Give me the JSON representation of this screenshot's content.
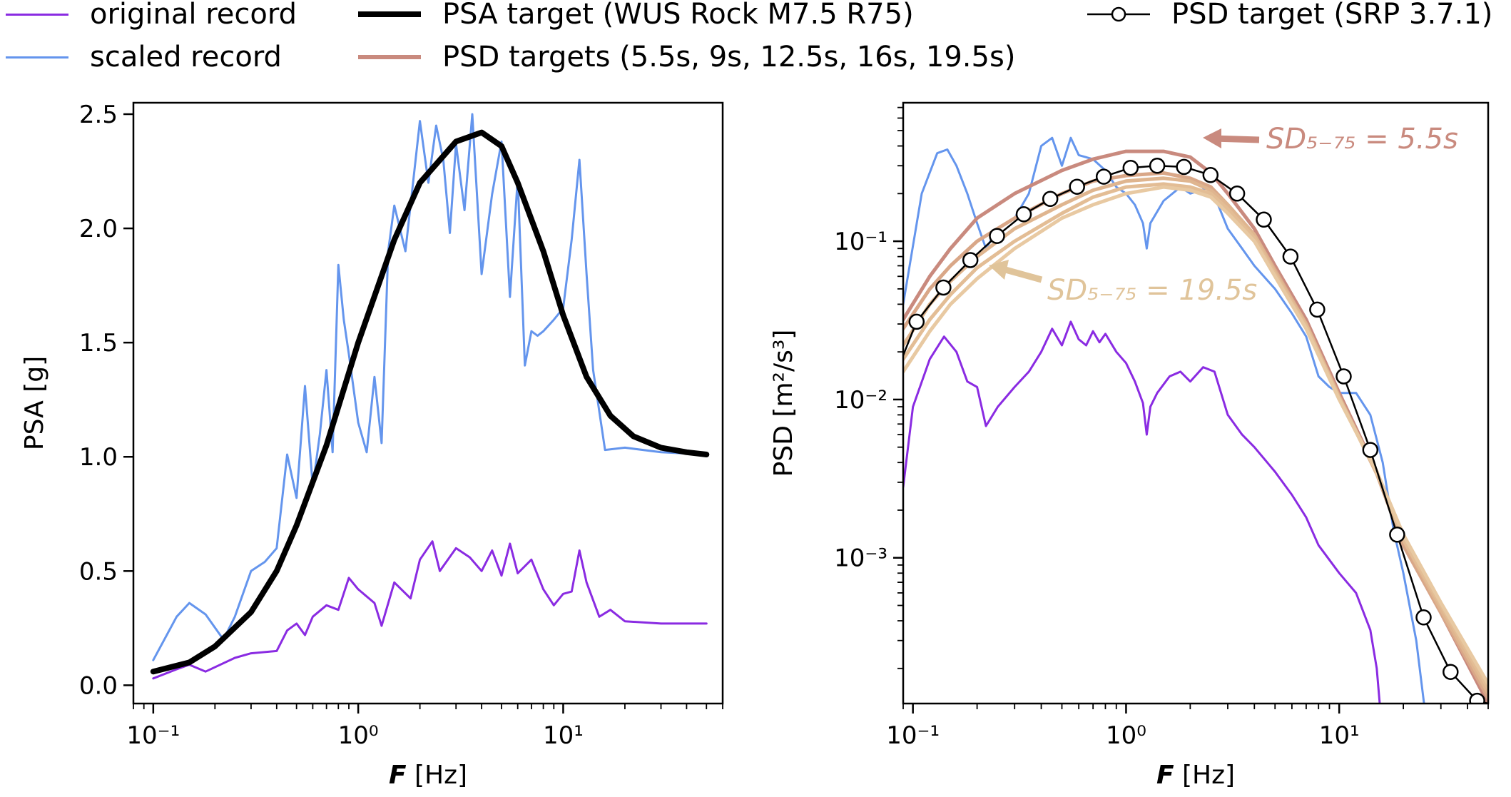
{
  "legend": [
    {
      "label": "original record",
      "color": "#8a2be2",
      "style": "thin"
    },
    {
      "label": "scaled record",
      "color": "#6495ed",
      "style": "thin"
    },
    {
      "label": "PSA target (WUS Rock M7.5 R75)",
      "color": "#000000",
      "style": "thick"
    },
    {
      "label": "PSD targets (5.5s, 9s, 12.5s, 16s, 19.5s)",
      "color": "#c98a7e",
      "style": "medium"
    },
    {
      "label": "PSD target (SRP 3.7.1)",
      "color": "#000000",
      "style": "marker"
    }
  ],
  "chart_data": [
    {
      "type": "line",
      "xscale": "log",
      "xlim": [
        0.08,
        60
      ],
      "ylim": [
        -0.08,
        2.55
      ],
      "xlabel": "F [Hz]",
      "ylabel": "PSA [g]",
      "yticks": [
        0.0,
        0.5,
        1.0,
        1.5,
        2.0,
        2.5
      ],
      "ytick_labels": [
        "0.0",
        "0.5",
        "1.0",
        "1.5",
        "2.0",
        "2.5"
      ],
      "xticks": [
        0.1,
        1,
        10
      ],
      "xtick_labels": [
        "10⁻¹",
        "10⁰",
        "10¹"
      ],
      "series": [
        {
          "name": "original record",
          "color": "#8a2be2",
          "x": [
            0.1,
            0.13,
            0.15,
            0.18,
            0.25,
            0.3,
            0.4,
            0.45,
            0.5,
            0.55,
            0.6,
            0.7,
            0.8,
            0.9,
            1.0,
            1.2,
            1.3,
            1.5,
            1.8,
            2.0,
            2.3,
            2.5,
            3.0,
            3.5,
            4.0,
            4.5,
            5.0,
            5.5,
            6.0,
            7.0,
            8.0,
            9.0,
            10.0,
            11.0,
            12.0,
            13.0,
            15.0,
            17.0,
            20.0,
            30.0,
            50.0
          ],
          "y": [
            0.03,
            0.07,
            0.09,
            0.06,
            0.12,
            0.14,
            0.15,
            0.24,
            0.27,
            0.22,
            0.3,
            0.35,
            0.33,
            0.47,
            0.42,
            0.36,
            0.26,
            0.45,
            0.38,
            0.55,
            0.63,
            0.5,
            0.6,
            0.56,
            0.5,
            0.59,
            0.48,
            0.62,
            0.49,
            0.55,
            0.42,
            0.35,
            0.4,
            0.41,
            0.59,
            0.45,
            0.3,
            0.33,
            0.28,
            0.27,
            0.27
          ]
        },
        {
          "name": "scaled record",
          "color": "#6495ed",
          "x": [
            0.1,
            0.13,
            0.15,
            0.18,
            0.22,
            0.25,
            0.3,
            0.35,
            0.4,
            0.45,
            0.5,
            0.55,
            0.6,
            0.65,
            0.7,
            0.75,
            0.8,
            0.85,
            0.9,
            1.0,
            1.1,
            1.2,
            1.3,
            1.4,
            1.5,
            1.7,
            2.0,
            2.2,
            2.4,
            2.6,
            2.8,
            3.0,
            3.3,
            3.6,
            4.0,
            4.5,
            5.0,
            5.5,
            6.0,
            6.5,
            7.0,
            7.5,
            8.0,
            9.0,
            10.0,
            11.0,
            12.0,
            13.0,
            14.0,
            16.0,
            20.0,
            30.0,
            50.0
          ],
          "y": [
            0.11,
            0.3,
            0.36,
            0.31,
            0.2,
            0.3,
            0.5,
            0.54,
            0.6,
            1.01,
            0.82,
            1.31,
            0.87,
            1.1,
            1.38,
            1.02,
            1.84,
            1.6,
            1.45,
            1.15,
            1.02,
            1.35,
            1.06,
            1.9,
            2.1,
            1.9,
            2.47,
            2.2,
            2.45,
            2.3,
            1.98,
            2.37,
            2.08,
            2.5,
            1.8,
            2.15,
            2.38,
            1.7,
            2.22,
            1.4,
            1.55,
            1.53,
            1.55,
            1.6,
            1.65,
            1.95,
            2.3,
            1.8,
            1.38,
            1.03,
            1.04,
            1.02,
            1.01
          ]
        },
        {
          "name": "PSA target (WUS Rock M7.5 R75)",
          "color": "#000000",
          "x": [
            0.1,
            0.15,
            0.2,
            0.3,
            0.4,
            0.5,
            0.7,
            1.0,
            1.5,
            2.0,
            3.0,
            4.0,
            5.0,
            6.0,
            8.0,
            10.0,
            13.0,
            17.0,
            22.0,
            30.0,
            40.0,
            50.0
          ],
          "y": [
            0.06,
            0.1,
            0.17,
            0.32,
            0.5,
            0.7,
            1.05,
            1.5,
            1.95,
            2.2,
            2.38,
            2.42,
            2.36,
            2.2,
            1.9,
            1.62,
            1.35,
            1.18,
            1.09,
            1.04,
            1.02,
            1.01
          ]
        }
      ]
    },
    {
      "type": "line",
      "xscale": "log",
      "yscale": "log",
      "xlim": [
        0.09,
        50
      ],
      "ylim": [
        0.00012,
        0.75
      ],
      "xlabel": "F [Hz]",
      "ylabel": "PSD [m²/s³]",
      "yticks": [
        0.001,
        0.01,
        0.1
      ],
      "ytick_labels": [
        "10⁻³",
        "10⁻²",
        "10⁻¹"
      ],
      "xticks": [
        0.1,
        1,
        10
      ],
      "xtick_labels": [
        "10⁻¹",
        "10⁰",
        "10¹"
      ],
      "annotations": [
        {
          "text": "SD₅₋₇₅ = 5.5s",
          "color": "#c98a7e"
        },
        {
          "text": "SD₅₋₇₅ = 19.5s",
          "color": "#e0c49a"
        }
      ],
      "series": [
        {
          "name": "original record",
          "color": "#8a2be2",
          "x": [
            0.09,
            0.1,
            0.12,
            0.14,
            0.16,
            0.18,
            0.2,
            0.22,
            0.25,
            0.3,
            0.35,
            0.4,
            0.45,
            0.5,
            0.55,
            0.6,
            0.65,
            0.7,
            0.75,
            0.8,
            0.9,
            1.0,
            1.1,
            1.2,
            1.25,
            1.3,
            1.4,
            1.6,
            1.8,
            2.0,
            2.3,
            2.6,
            3.0,
            3.5,
            4.0,
            5.0,
            6.0,
            7.0,
            8.0,
            10.0,
            12.0,
            14.0,
            15.0,
            15.5
          ],
          "y": [
            0.0028,
            0.009,
            0.018,
            0.025,
            0.02,
            0.013,
            0.012,
            0.0068,
            0.009,
            0.012,
            0.015,
            0.02,
            0.028,
            0.022,
            0.031,
            0.024,
            0.022,
            0.027,
            0.023,
            0.026,
            0.02,
            0.017,
            0.013,
            0.0095,
            0.006,
            0.009,
            0.011,
            0.014,
            0.015,
            0.013,
            0.016,
            0.015,
            0.008,
            0.006,
            0.005,
            0.0035,
            0.0025,
            0.0018,
            0.0012,
            0.0008,
            0.0006,
            0.00035,
            0.0002,
            0.00012
          ]
        },
        {
          "name": "scaled record",
          "color": "#6495ed",
          "x": [
            0.09,
            0.11,
            0.13,
            0.145,
            0.16,
            0.18,
            0.2,
            0.22,
            0.25,
            0.3,
            0.35,
            0.4,
            0.45,
            0.5,
            0.55,
            0.6,
            0.7,
            0.8,
            0.9,
            1.0,
            1.1,
            1.2,
            1.25,
            1.3,
            1.5,
            1.8,
            2.0,
            2.5,
            3.0,
            3.5,
            4.0,
            5.0,
            6.0,
            7.0,
            8.0,
            9.0,
            10.0,
            12.0,
            14.0,
            16.0,
            18.0,
            20.0,
            23.0,
            25.0
          ],
          "y": [
            0.04,
            0.2,
            0.36,
            0.38,
            0.3,
            0.2,
            0.13,
            0.09,
            0.12,
            0.14,
            0.2,
            0.4,
            0.45,
            0.3,
            0.45,
            0.35,
            0.33,
            0.28,
            0.22,
            0.2,
            0.17,
            0.13,
            0.09,
            0.13,
            0.18,
            0.22,
            0.2,
            0.22,
            0.12,
            0.09,
            0.07,
            0.05,
            0.035,
            0.025,
            0.014,
            0.012,
            0.011,
            0.011,
            0.008,
            0.004,
            0.0015,
            0.0008,
            0.0003,
            0.00012
          ]
        },
        {
          "name": "PSD target 5.5s",
          "color": "#c98a7e",
          "x": [
            0.09,
            0.12,
            0.15,
            0.2,
            0.3,
            0.5,
            0.7,
            1.0,
            1.5,
            2.0,
            2.5,
            3.0,
            4.0,
            5.0,
            7.0,
            10.0,
            15.0,
            20.0,
            30.0,
            50.0
          ],
          "y": [
            0.032,
            0.06,
            0.09,
            0.14,
            0.2,
            0.28,
            0.33,
            0.37,
            0.37,
            0.34,
            0.27,
            0.2,
            0.12,
            0.07,
            0.032,
            0.011,
            0.0035,
            0.0012,
            0.00045,
            0.00012
          ]
        },
        {
          "name": "PSD target 9s",
          "color": "#d9a788",
          "x": [
            0.09,
            0.12,
            0.15,
            0.2,
            0.3,
            0.5,
            0.7,
            1.0,
            1.5,
            2.0,
            2.5,
            3.0,
            4.0,
            5.0,
            7.0,
            10.0,
            15.0,
            20.0,
            30.0,
            50.0
          ],
          "y": [
            0.028,
            0.05,
            0.07,
            0.1,
            0.14,
            0.2,
            0.24,
            0.26,
            0.27,
            0.25,
            0.22,
            0.17,
            0.11,
            0.066,
            0.03,
            0.0105,
            0.0034,
            0.0012,
            0.00045,
            0.00013
          ]
        },
        {
          "name": "PSD target 12.5s",
          "color": "#dfb58f",
          "x": [
            0.09,
            0.12,
            0.15,
            0.2,
            0.3,
            0.5,
            0.7,
            1.0,
            1.5,
            2.0,
            2.5,
            3.0,
            4.0,
            5.0,
            7.0,
            10.0,
            15.0,
            20.0,
            30.0,
            50.0
          ],
          "y": [
            0.022,
            0.04,
            0.056,
            0.08,
            0.12,
            0.17,
            0.21,
            0.24,
            0.25,
            0.24,
            0.21,
            0.17,
            0.11,
            0.064,
            0.03,
            0.0103,
            0.0034,
            0.0013,
            0.00047,
            0.00014
          ]
        },
        {
          "name": "PSD target 16s",
          "color": "#e3bd95",
          "x": [
            0.09,
            0.12,
            0.15,
            0.2,
            0.3,
            0.5,
            0.7,
            1.0,
            1.5,
            2.0,
            2.5,
            3.0,
            4.0,
            5.0,
            7.0,
            10.0,
            15.0,
            20.0,
            30.0,
            50.0
          ],
          "y": [
            0.018,
            0.032,
            0.046,
            0.068,
            0.1,
            0.15,
            0.19,
            0.22,
            0.23,
            0.22,
            0.2,
            0.16,
            0.105,
            0.062,
            0.029,
            0.0102,
            0.0035,
            0.0013,
            0.0005,
            0.00015
          ]
        },
        {
          "name": "PSD target 19.5s",
          "color": "#e8c9a2",
          "x": [
            0.09,
            0.12,
            0.15,
            0.2,
            0.3,
            0.5,
            0.7,
            1.0,
            1.5,
            2.0,
            2.5,
            3.0,
            4.0,
            5.0,
            7.0,
            10.0,
            15.0,
            20.0,
            30.0,
            50.0
          ],
          "y": [
            0.015,
            0.027,
            0.04,
            0.058,
            0.09,
            0.14,
            0.17,
            0.2,
            0.22,
            0.21,
            0.19,
            0.15,
            0.1,
            0.06,
            0.028,
            0.01,
            0.0035,
            0.0014,
            0.00052,
            0.00016
          ]
        },
        {
          "name": "PSD target (SRP 3.7.1)",
          "color": "#000000",
          "markers": true,
          "x": [
            0.09,
            0.104,
            0.139,
            0.186,
            0.248,
            0.331,
            0.441,
            0.589,
            0.786,
            1.05,
            1.4,
            1.87,
            2.49,
            3.32,
            4.43,
            5.91,
            7.89,
            10.5,
            14.0,
            18.7,
            24.9,
            33.3,
            44.4,
            50.0
          ],
          "y": [
            0.019,
            0.031,
            0.051,
            0.076,
            0.108,
            0.148,
            0.185,
            0.221,
            0.256,
            0.291,
            0.3,
            0.295,
            0.262,
            0.2,
            0.137,
            0.08,
            0.037,
            0.014,
            0.0048,
            0.0014,
            0.00042,
            0.00019,
            0.000125,
            0.00012
          ],
          "marker_from": 1,
          "marker_to": 22
        }
      ]
    }
  ]
}
